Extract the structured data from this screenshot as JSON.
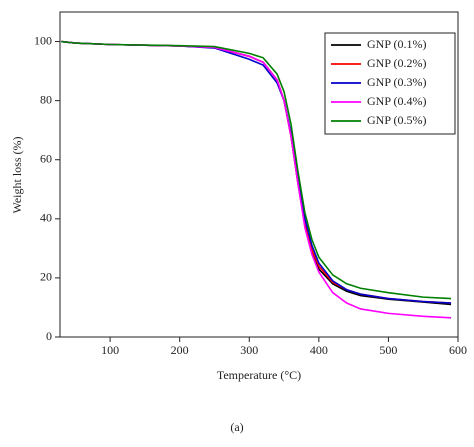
{
  "chart_data": {
    "type": "line",
    "x_label": "Temperature (°C)",
    "y_label": "Weight loss (%)",
    "caption": "(a)",
    "x": [
      30,
      50,
      100,
      200,
      250,
      300,
      320,
      340,
      350,
      360,
      370,
      380,
      390,
      400,
      420,
      440,
      460,
      500,
      550,
      590
    ],
    "series": [
      {
        "name": "GNP (0.1%)",
        "color": "#000000",
        "values": [
          100,
          99.5,
          99,
          98.5,
          98,
          95,
          93,
          87,
          80,
          68,
          52,
          38,
          29,
          23,
          18,
          15.5,
          14,
          12.8,
          11.8,
          11
        ]
      },
      {
        "name": "GNP (0.2%)",
        "color": "#ff0000",
        "values": [
          100,
          99.5,
          99,
          98.5,
          98,
          95,
          93,
          87,
          80,
          68,
          52,
          38,
          29.5,
          24,
          18.5,
          16,
          14.5,
          13,
          12,
          11.5
        ]
      },
      {
        "name": "GNP (0.3%)",
        "color": "#0000cc",
        "values": [
          100,
          99.5,
          99,
          98.5,
          97.8,
          94,
          92,
          86,
          80,
          69,
          54,
          40,
          31,
          25,
          19,
          16,
          14.5,
          13,
          12,
          11.5
        ]
      },
      {
        "name": "GNP (0.4%)",
        "color": "#ff00ff",
        "values": [
          100,
          99.5,
          99,
          98.5,
          98,
          95,
          93,
          87,
          80,
          68,
          52,
          37,
          28,
          22,
          15,
          11.5,
          9.5,
          8,
          7,
          6.5
        ]
      },
      {
        "name": "GNP (0.5%)",
        "color": "#008000",
        "values": [
          100,
          99.5,
          99,
          98.6,
          98.3,
          96,
          94.5,
          89,
          83,
          72,
          56,
          42,
          33,
          27,
          21,
          18,
          16.5,
          15,
          13.5,
          13
        ]
      }
    ],
    "xlim": [
      28,
      600
    ],
    "ylim": [
      0,
      110
    ],
    "xticks": [
      100,
      200,
      300,
      400,
      500,
      600
    ],
    "yticks": [
      0,
      20,
      40,
      60,
      80,
      100
    ],
    "legend": "upper right"
  }
}
